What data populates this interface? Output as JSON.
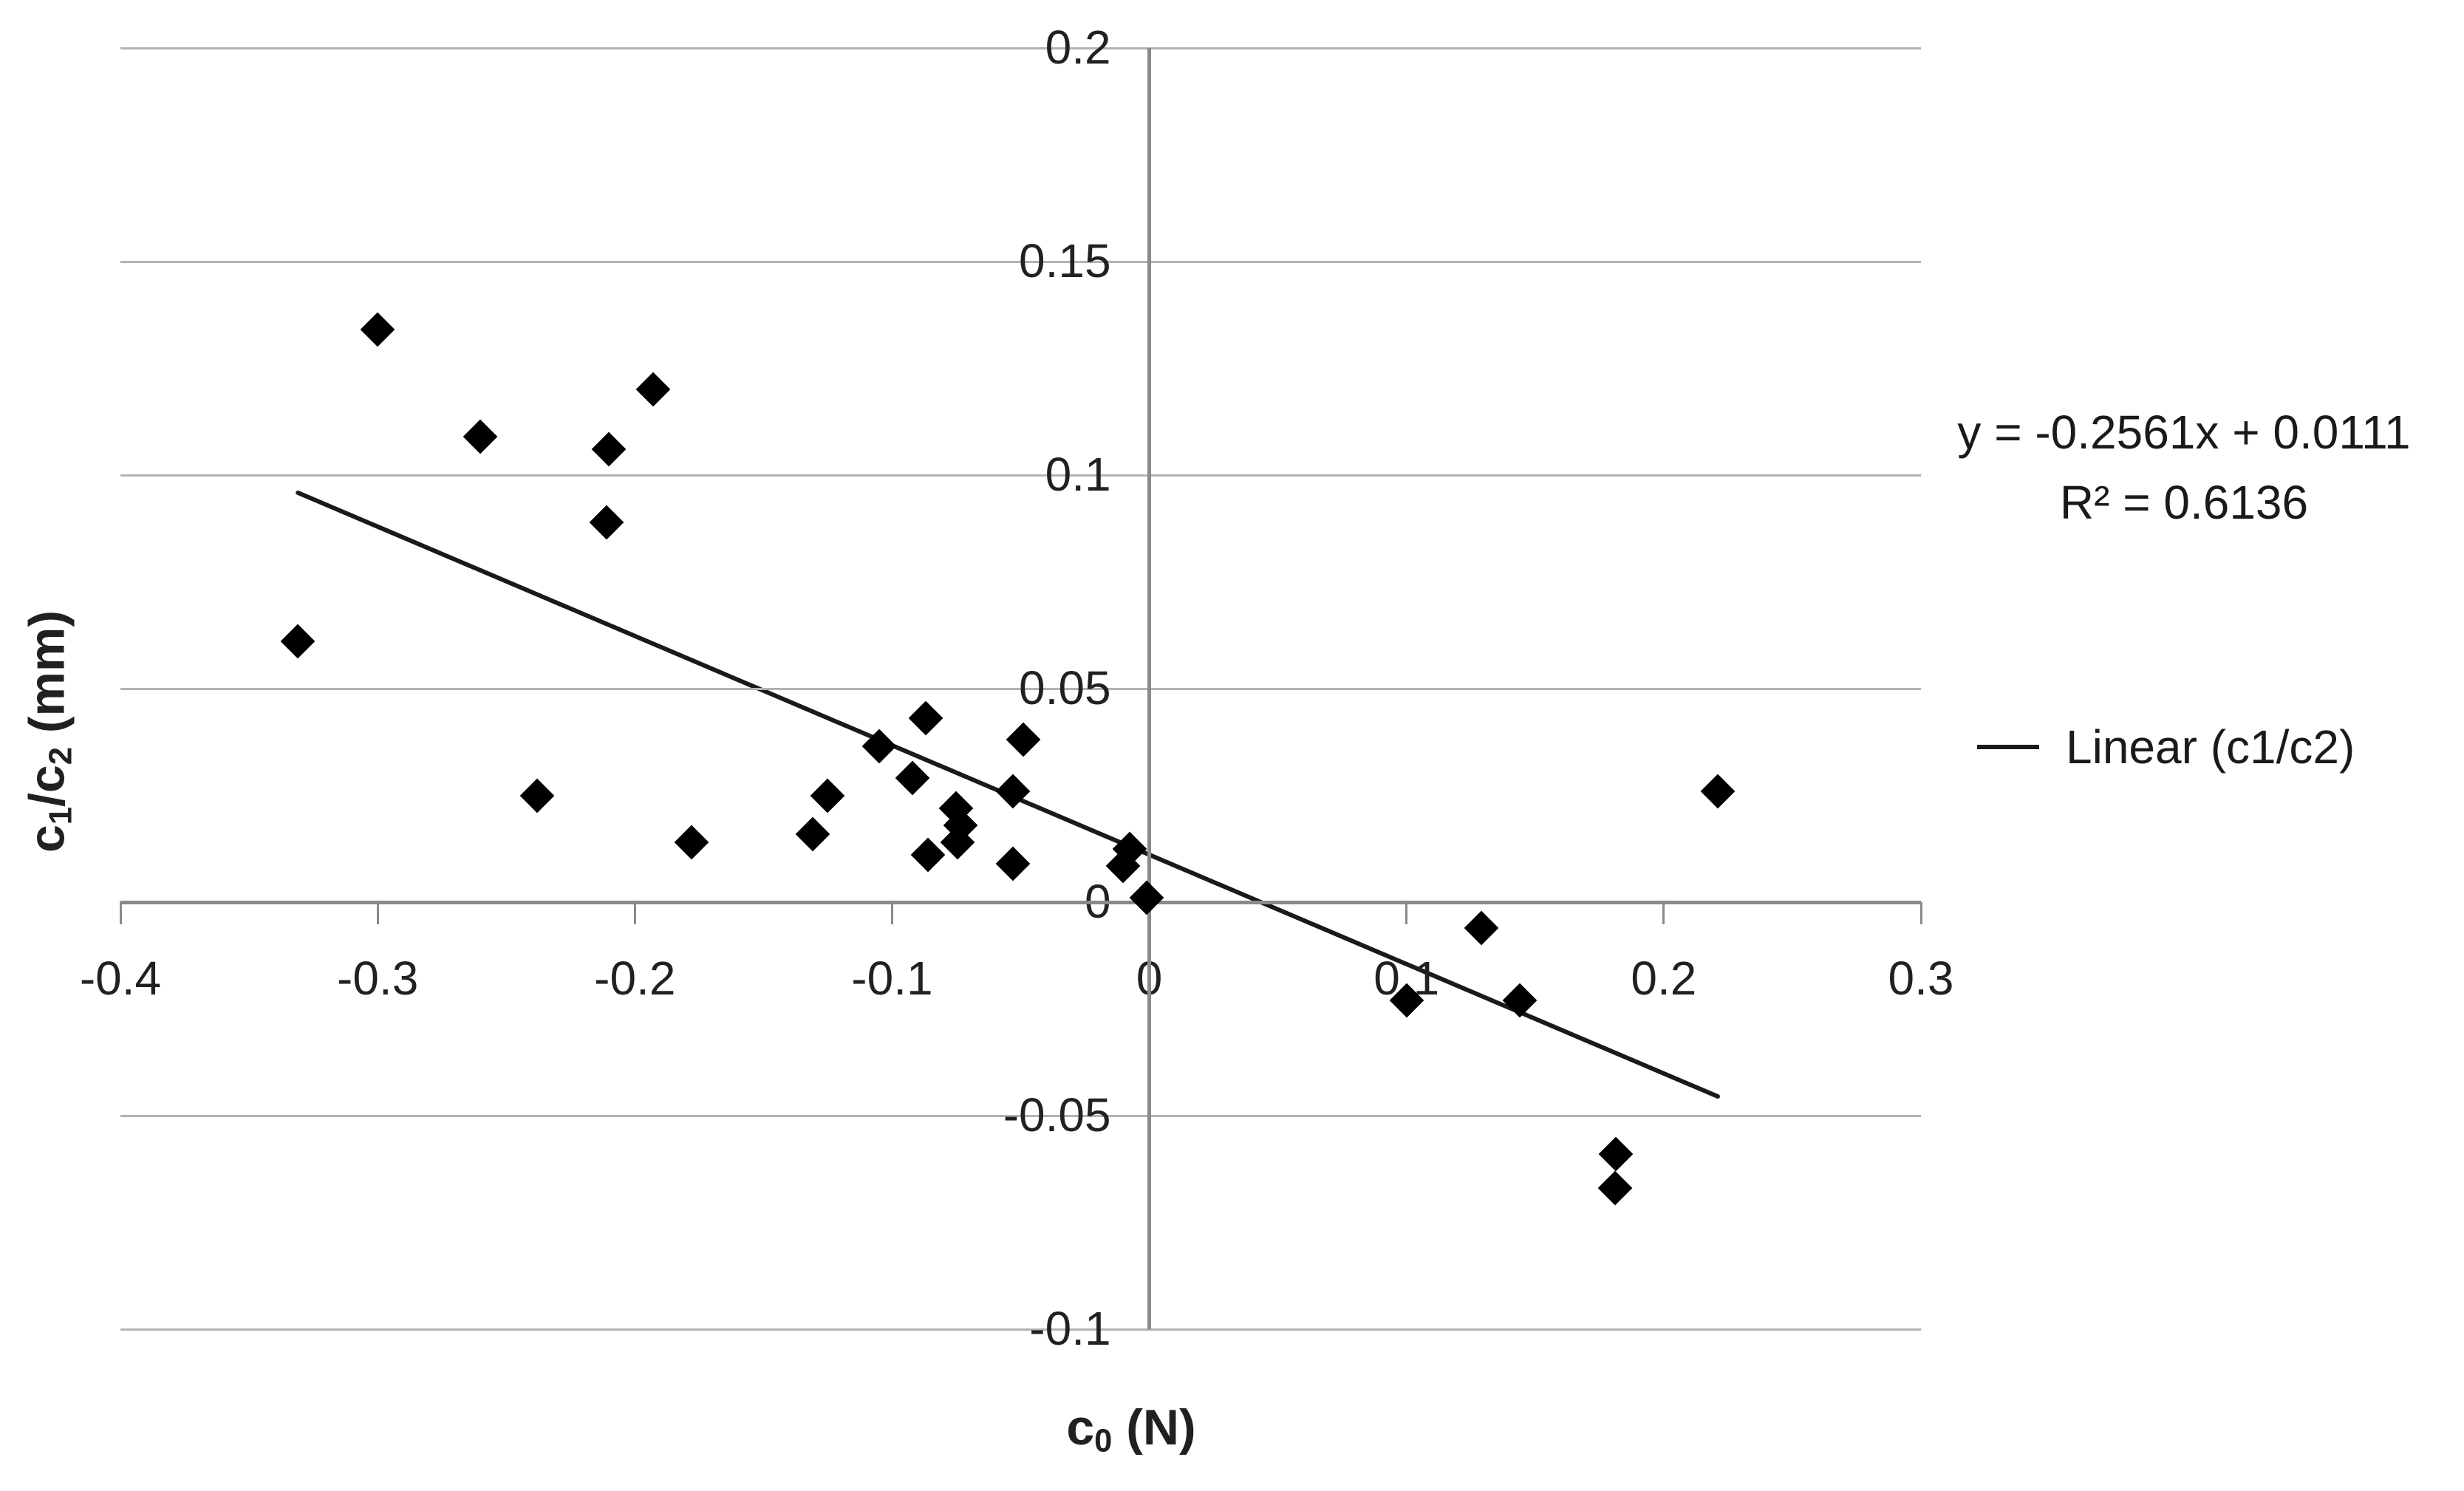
{
  "chart_data": {
    "type": "scatter",
    "title": "",
    "grid": true,
    "legend_position": "right",
    "x_axis": {
      "title_parts": [
        {
          "text": "c"
        },
        {
          "text": "0",
          "sub": true
        },
        {
          "text": " (N)"
        }
      ],
      "min": -0.4,
      "max": 0.3,
      "ticks": [
        -0.4,
        -0.3,
        -0.2,
        -0.1,
        0,
        0.1,
        0.2,
        0.3
      ],
      "tick_labels": [
        "-0.4",
        "-0.3",
        "-0.2",
        "-0.1",
        "0",
        "0.1",
        "0.2",
        "0.3"
      ]
    },
    "y_axis": {
      "title_parts": [
        {
          "text": "c"
        },
        {
          "text": "1",
          "sub": true
        },
        {
          "text": "/c"
        },
        {
          "text": "2",
          "sub": true
        },
        {
          "text": " (mm)"
        }
      ],
      "min": -0.1,
      "max": 0.2,
      "ticks": [
        0.2,
        0.15,
        0.1,
        0.05,
        0,
        -0.05,
        -0.1
      ],
      "tick_labels": [
        "0.2",
        "0.15",
        "0.1",
        "0.05",
        "0",
        "-0.05",
        "-0.1"
      ]
    },
    "series": [
      {
        "name": "c1/c2",
        "marker": "diamond",
        "color": "#000000",
        "points": [
          [
            -0.3,
            0.134
          ],
          [
            -0.26,
            0.109
          ],
          [
            -0.21,
            0.106
          ],
          [
            -0.193,
            0.12
          ],
          [
            -0.211,
            0.089
          ],
          [
            -0.331,
            0.061
          ],
          [
            -0.238,
            0.025
          ],
          [
            -0.178,
            0.014
          ],
          [
            -0.131,
            0.016
          ],
          [
            -0.125,
            0.025
          ],
          [
            -0.105,
            0.0365
          ],
          [
            -0.092,
            0.029
          ],
          [
            -0.087,
            0.043
          ],
          [
            -0.075,
            0.022
          ],
          [
            -0.0735,
            0.018
          ],
          [
            -0.0745,
            0.014
          ],
          [
            -0.086,
            0.011
          ],
          [
            -0.053,
            0.026
          ],
          [
            -0.049,
            0.038
          ],
          [
            -0.053,
            0.009
          ],
          [
            -0.0075,
            0.0125
          ],
          [
            -0.0103,
            0.0085
          ],
          [
            -0.001,
            0.001
          ],
          [
            0.1,
            -0.023
          ],
          [
            0.129,
            -0.006
          ],
          [
            0.144,
            -0.023
          ],
          [
            0.1815,
            -0.059
          ],
          [
            0.181,
            -0.067
          ],
          [
            0.221,
            0.026
          ]
        ]
      }
    ],
    "trendline": {
      "slope": -0.2561,
      "intercept": 0.0111,
      "r_squared": 0.6136,
      "x_start": -0.331,
      "x_end": 0.221,
      "equation_line1": "y = -0.2561x + 0.0111",
      "equation_line2": "R² = 0.6136"
    },
    "legend": {
      "label": "Linear (c1/c2)"
    }
  },
  "colors": {
    "marker": "#000000",
    "trendline": "#1a1a1a",
    "gridline": "#b3b3b3",
    "axis_line": "#8a8a8a",
    "text": "#212121"
  }
}
